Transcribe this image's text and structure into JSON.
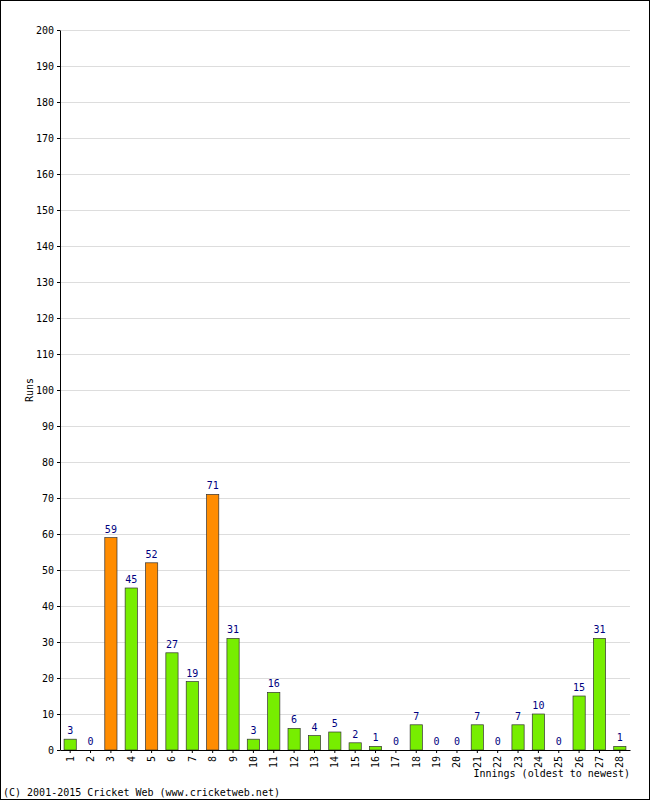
{
  "chart_data": {
    "type": "bar",
    "x_label": "Innings (oldest to newest)",
    "y_label": "Runs",
    "annotations": [
      "(C) 2001-2015 Cricket Web (www.cricketweb.net)"
    ],
    "categories": [
      "1",
      "2",
      "3",
      "4",
      "5",
      "6",
      "7",
      "8",
      "9",
      "10",
      "11",
      "12",
      "13",
      "14",
      "15",
      "16",
      "17",
      "18",
      "19",
      "20",
      "21",
      "22",
      "23",
      "24",
      "25",
      "26",
      "27",
      "28"
    ],
    "values": [
      3,
      0,
      59,
      45,
      52,
      27,
      19,
      71,
      31,
      3,
      16,
      6,
      4,
      5,
      2,
      1,
      0,
      7,
      0,
      0,
      7,
      0,
      7,
      10,
      0,
      15,
      31,
      1
    ],
    "colors": [
      "#77ee00",
      "#77ee00",
      "#ff8c00",
      "#77ee00",
      "#ff8c00",
      "#77ee00",
      "#77ee00",
      "#ff8c00",
      "#77ee00",
      "#77ee00",
      "#77ee00",
      "#77ee00",
      "#77ee00",
      "#77ee00",
      "#77ee00",
      "#77ee00",
      "#77ee00",
      "#77ee00",
      "#77ee00",
      "#77ee00",
      "#77ee00",
      "#77ee00",
      "#77ee00",
      "#77ee00",
      "#77ee00",
      "#77ee00",
      "#77ee00",
      "#77ee00"
    ],
    "ylim": [
      0,
      200
    ],
    "yticks": [
      0,
      10,
      20,
      30,
      40,
      50,
      60,
      70,
      80,
      90,
      100,
      110,
      120,
      130,
      140,
      150,
      160,
      170,
      180,
      190,
      200
    ],
    "grid": true,
    "data_labels": true
  }
}
